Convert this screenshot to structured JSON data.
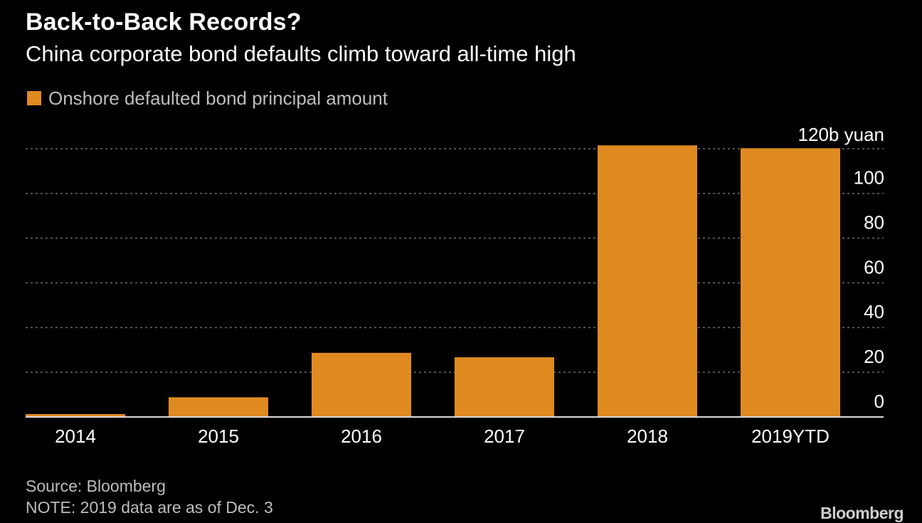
{
  "header": {
    "title": "Back-to-Back Records?",
    "subtitle": "China corporate bond defaults climb toward all-time high"
  },
  "legend": {
    "label": "Onshore defaulted bond principal amount"
  },
  "footer": {
    "source": "Source: Bloomberg",
    "note": "NOTE: 2019 data are as of Dec. 3",
    "brand": "Bloomberg"
  },
  "colors": {
    "background": "#000000",
    "bar": "#e08a22",
    "grid": "#6e6e6e",
    "text": "#ffffff",
    "muted_text": "#bdbdbd"
  },
  "chart_data": {
    "type": "bar",
    "categories": [
      "2014",
      "2015",
      "2016",
      "2017",
      "2018",
      "2019YTD"
    ],
    "series": [
      {
        "name": "Onshore defaulted bond principal amount",
        "values": [
          1.3,
          8.8,
          28.7,
          26.7,
          121.5,
          120.2
        ]
      }
    ],
    "ylim": [
      0,
      120
    ],
    "yticks": [
      0,
      20,
      40,
      60,
      80,
      100,
      120
    ],
    "ytick_labels": [
      "0",
      "20",
      "40",
      "60",
      "80",
      "100",
      "120b yuan"
    ],
    "yaxis_position": "right",
    "grid": true,
    "legend_position": "top-left"
  }
}
